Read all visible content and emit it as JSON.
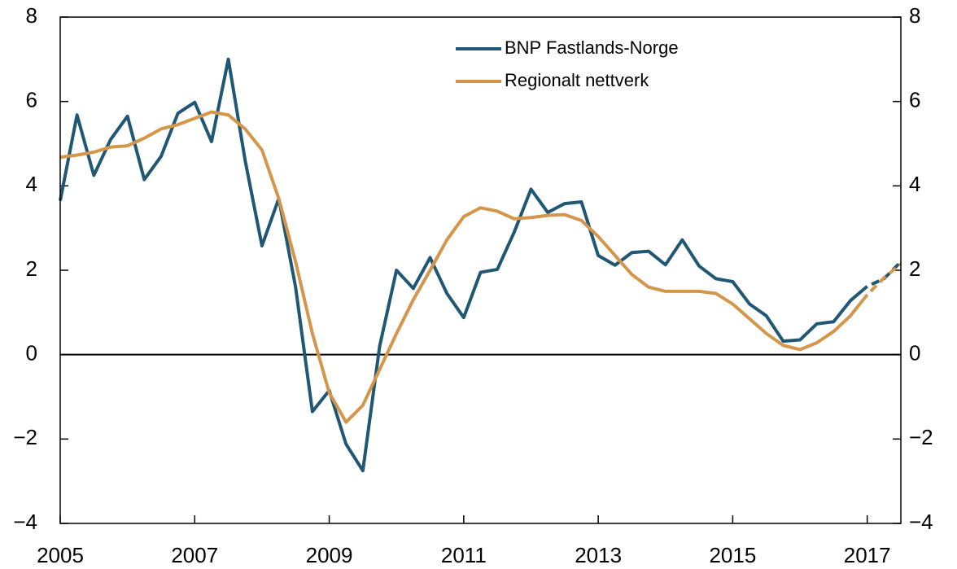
{
  "chart_data": {
    "type": "line",
    "x": [
      2005,
      2005.25,
      2005.5,
      2005.75,
      2006,
      2006.25,
      2006.5,
      2006.75,
      2007,
      2007.25,
      2007.5,
      2007.75,
      2008,
      2008.25,
      2008.5,
      2008.75,
      2009,
      2009.25,
      2009.5,
      2009.75,
      2010,
      2010.25,
      2010.5,
      2010.75,
      2011,
      2011.25,
      2011.5,
      2011.75,
      2012,
      2012.25,
      2012.5,
      2012.75,
      2013,
      2013.25,
      2013.5,
      2013.75,
      2014,
      2014.25,
      2014.5,
      2014.75,
      2015,
      2015.25,
      2015.5,
      2015.75,
      2016,
      2016.25,
      2016.5,
      2016.75,
      2017,
      2017.25,
      2017.5
    ],
    "series": [
      {
        "name": "BNP Fastlands-Norge",
        "color": "#1f5775",
        "values": [
          3.65,
          5.68,
          4.25,
          5.1,
          5.65,
          4.15,
          4.7,
          5.72,
          5.98,
          5.05,
          7.0,
          4.6,
          2.58,
          3.7,
          1.6,
          -1.35,
          -0.85,
          -2.12,
          -2.75,
          0.2,
          2.0,
          1.57,
          2.3,
          1.45,
          0.88,
          1.95,
          2.02,
          2.9,
          3.92,
          3.37,
          3.58,
          3.62,
          2.35,
          2.12,
          2.42,
          2.45,
          2.13,
          2.72,
          2.1,
          1.8,
          1.73,
          1.2,
          0.92,
          0.32,
          0.35,
          0.73,
          0.78,
          1.28,
          1.62,
          1.8,
          2.2
        ]
      },
      {
        "name": "Regionalt nettverk",
        "color": "#d4964a",
        "values": [
          4.68,
          4.73,
          4.8,
          4.92,
          4.95,
          5.13,
          5.35,
          5.45,
          5.6,
          5.75,
          5.68,
          5.35,
          4.85,
          3.7,
          2.2,
          0.5,
          -0.9,
          -1.6,
          -1.2,
          -0.35,
          0.5,
          1.3,
          2.0,
          2.72,
          3.27,
          3.48,
          3.4,
          3.22,
          3.25,
          3.3,
          3.32,
          3.18,
          2.8,
          2.35,
          1.9,
          1.6,
          1.5,
          1.5,
          1.5,
          1.45,
          1.2,
          0.85,
          0.5,
          0.22,
          0.12,
          0.28,
          0.55,
          0.92,
          1.42,
          1.82,
          2.15
        ]
      }
    ],
    "forecast_from": 2017,
    "xlim": [
      2005,
      2017.5
    ],
    "xticks": [
      2005,
      2007,
      2009,
      2011,
      2013,
      2015,
      2017
    ],
    "ylim": [
      -4,
      8
    ],
    "yticks": [
      {
        "value": -4,
        "label": "−4"
      },
      {
        "value": -2,
        "label": "−2"
      },
      0,
      2,
      4,
      6,
      8
    ],
    "y2lim": [
      -4,
      8
    ],
    "y2ticks": [
      {
        "value": -4,
        "label": "−4"
      },
      {
        "value": -2,
        "label": "−2"
      },
      0,
      2,
      4,
      6,
      8
    ],
    "grid": false
  }
}
